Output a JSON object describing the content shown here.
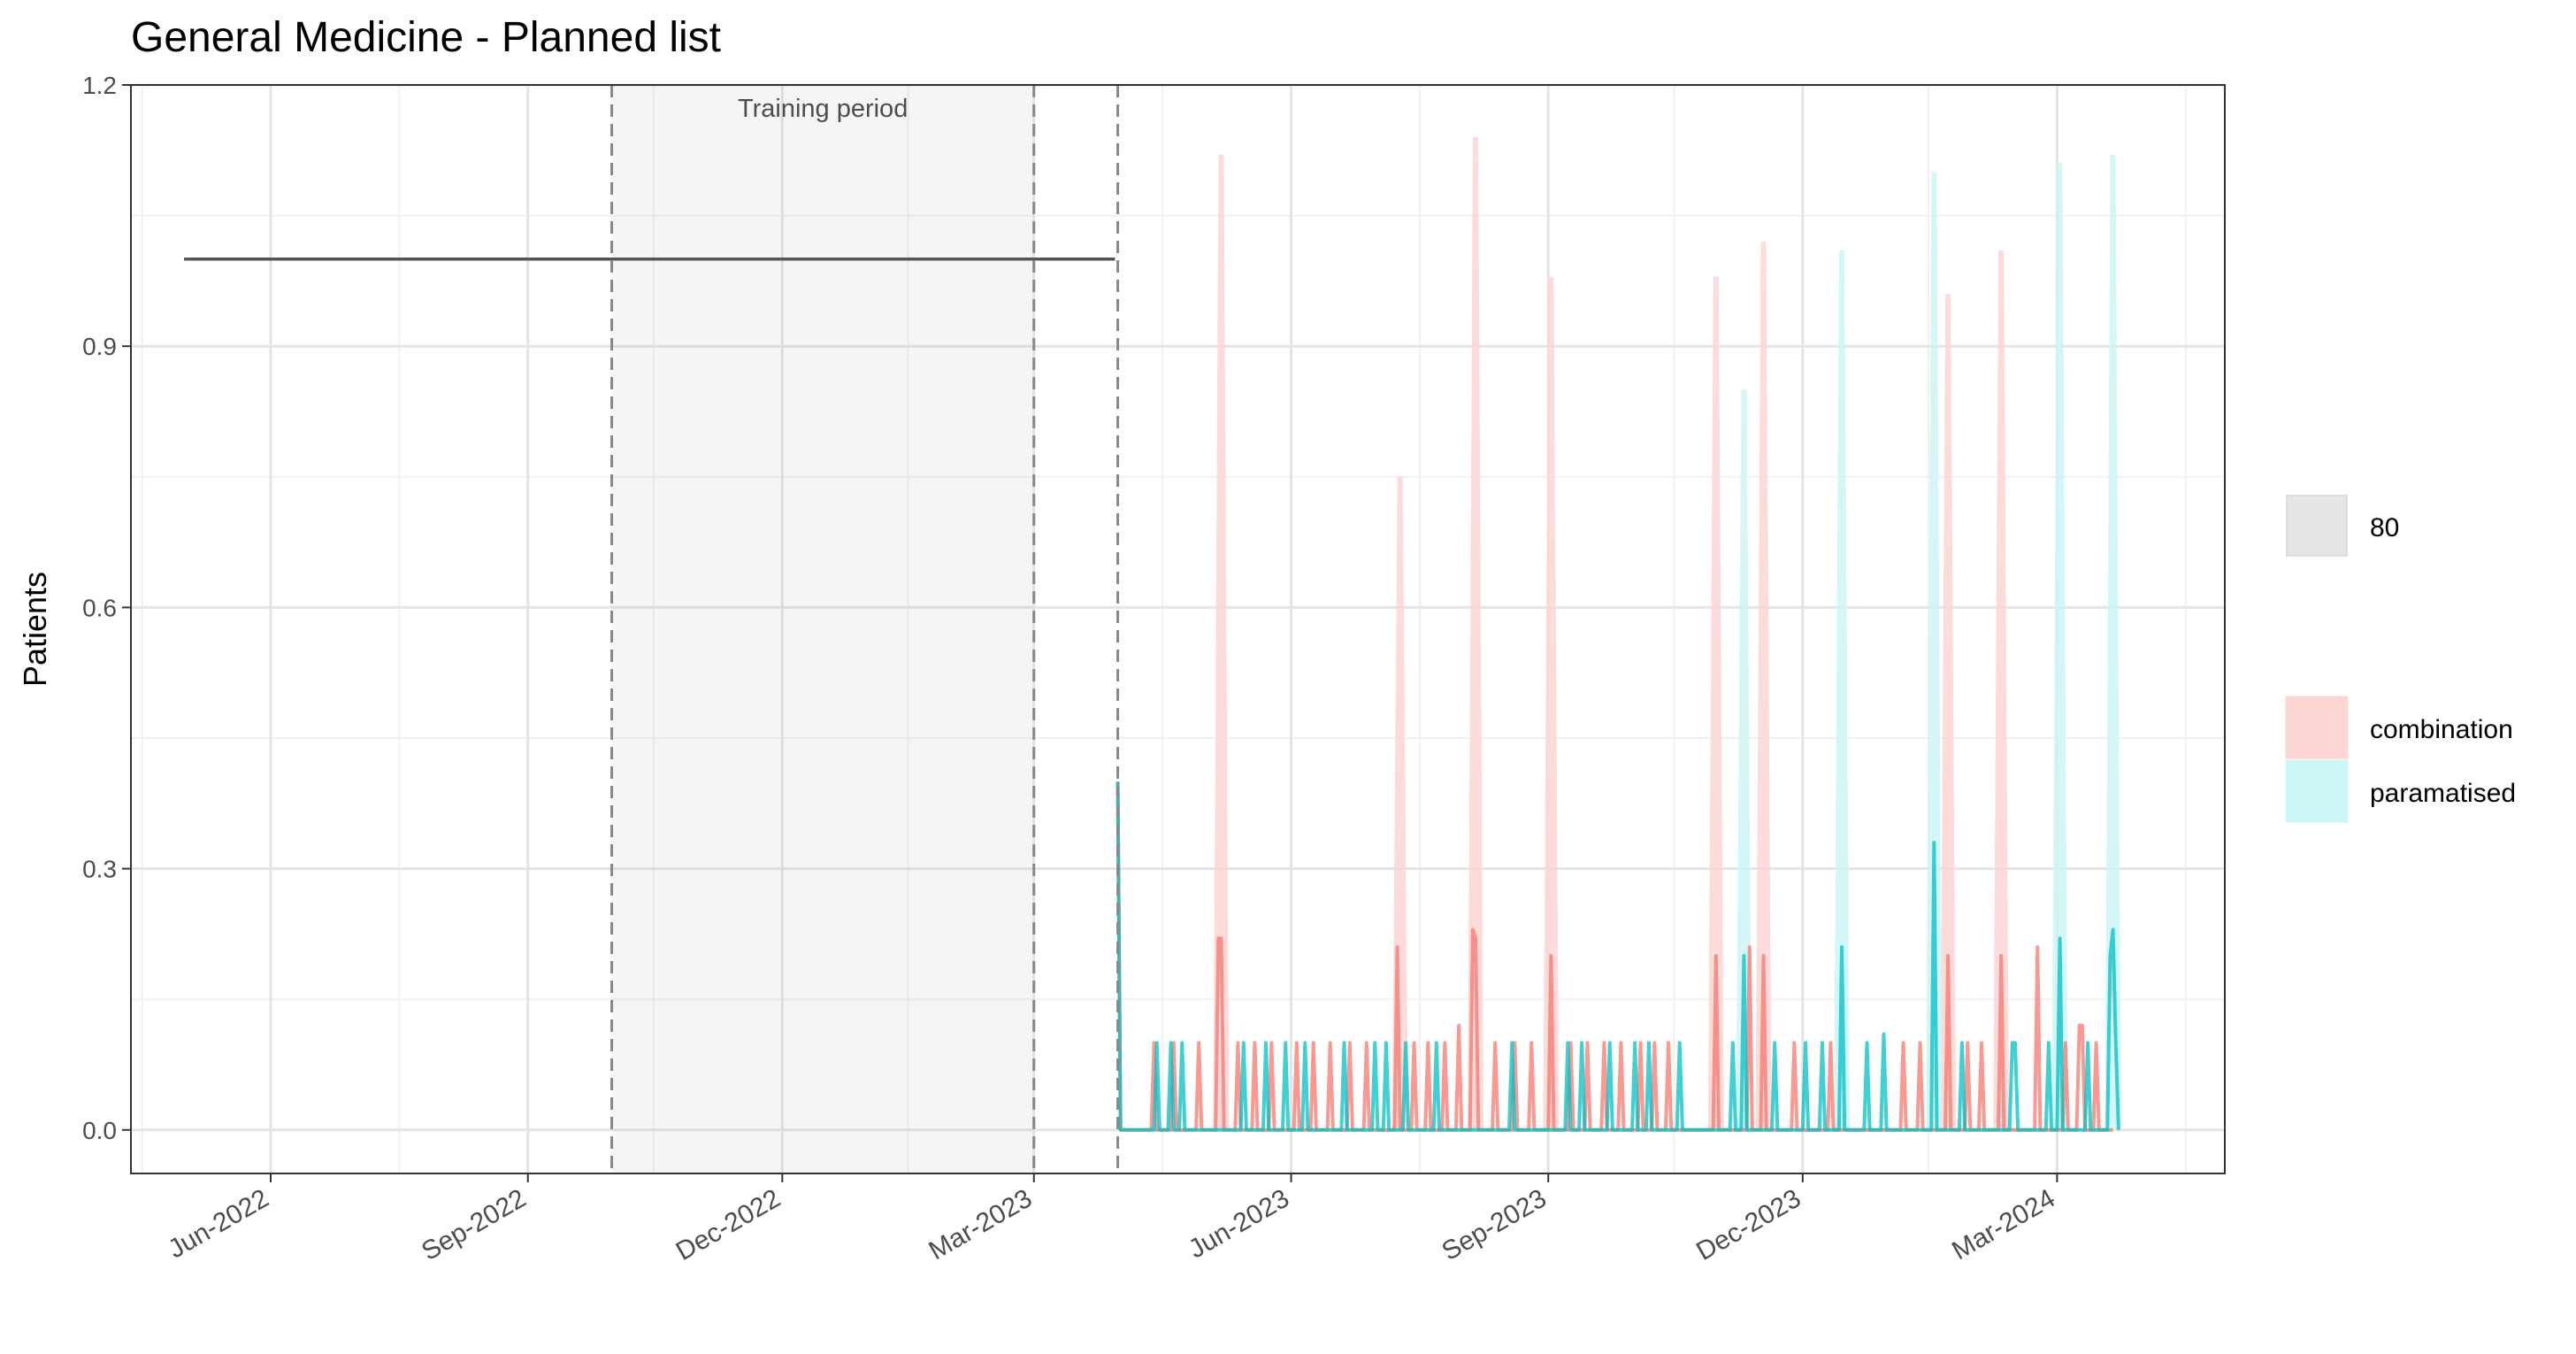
{
  "chart_data": {
    "type": "line",
    "title": "General Medicine - Planned list",
    "ylabel": "Patients",
    "xlabel": "",
    "ylim": [
      -0.05,
      1.2
    ],
    "xlim": [
      "2022-04-12",
      "2024-04-30"
    ],
    "grid": true,
    "y_ticks": [
      {
        "value": 0.0,
        "label": "0.0"
      },
      {
        "value": 0.3,
        "label": "0.3"
      },
      {
        "value": 0.6,
        "label": "0.6"
      },
      {
        "value": 0.9,
        "label": "0.9"
      },
      {
        "value": 1.2,
        "label": "1.2"
      }
    ],
    "x_ticks": [
      {
        "date": "2022-06-01",
        "label": "Jun-2022"
      },
      {
        "date": "2022-09-01",
        "label": "Sep-2022"
      },
      {
        "date": "2022-12-01",
        "label": "Dec-2022"
      },
      {
        "date": "2023-03-01",
        "label": "Mar-2023"
      },
      {
        "date": "2023-06-01",
        "label": "Jun-2023"
      },
      {
        "date": "2023-09-01",
        "label": "Sep-2023"
      },
      {
        "date": "2023-12-01",
        "label": "Dec-2023"
      },
      {
        "date": "2024-03-01",
        "label": "Mar-2024"
      }
    ],
    "training_period": {
      "label": "Training period",
      "start": "2022-10-01",
      "end": "2023-03-01"
    },
    "vlines": [
      "2022-10-01",
      "2023-03-01",
      "2023-03-31"
    ],
    "historical": {
      "color": "#555555",
      "start": "2022-05-01",
      "end": "2023-03-30",
      "value": 1.0
    },
    "legend": {
      "placement": "right",
      "interval": {
        "label": "80",
        "color": "#e5e5e5"
      },
      "entries": [
        {
          "label": "combination",
          "color": "#f8766d",
          "fill": "#fcd6d3"
        },
        {
          "label": "paramatised",
          "color": "#00bfc4",
          "fill": "#ccf5f6"
        }
      ]
    },
    "series": [
      {
        "name": "combination",
        "color": "#f8766d",
        "points": [
          [
            "2023-03-31",
            0.4
          ],
          [
            "2023-04-01",
            0
          ],
          [
            "2023-04-12",
            0
          ],
          [
            "2023-04-13",
            0.1
          ],
          [
            "2023-04-14",
            0
          ],
          [
            "2023-04-19",
            0
          ],
          [
            "2023-04-20",
            0.1
          ],
          [
            "2023-04-21",
            0
          ],
          [
            "2023-04-28",
            0
          ],
          [
            "2023-04-29",
            0.1
          ],
          [
            "2023-04-30",
            0
          ],
          [
            "2023-05-05",
            0
          ],
          [
            "2023-05-06",
            0.22
          ],
          [
            "2023-05-07",
            0.22
          ],
          [
            "2023-05-08",
            0
          ],
          [
            "2023-05-12",
            0
          ],
          [
            "2023-05-13",
            0.1
          ],
          [
            "2023-05-14",
            0
          ],
          [
            "2023-05-18",
            0
          ],
          [
            "2023-05-19",
            0.1
          ],
          [
            "2023-05-20",
            0
          ],
          [
            "2023-05-24",
            0
          ],
          [
            "2023-05-25",
            0.1
          ],
          [
            "2023-05-26",
            0
          ],
          [
            "2023-06-02",
            0
          ],
          [
            "2023-06-03",
            0.1
          ],
          [
            "2023-06-04",
            0
          ],
          [
            "2023-06-08",
            0
          ],
          [
            "2023-06-09",
            0.1
          ],
          [
            "2023-06-10",
            0
          ],
          [
            "2023-06-14",
            0
          ],
          [
            "2023-06-15",
            0.1
          ],
          [
            "2023-06-16",
            0
          ],
          [
            "2023-06-21",
            0
          ],
          [
            "2023-06-22",
            0.1
          ],
          [
            "2023-06-23",
            0
          ],
          [
            "2023-06-27",
            0
          ],
          [
            "2023-06-28",
            0.1
          ],
          [
            "2023-06-29",
            0
          ],
          [
            "2023-07-08",
            0
          ],
          [
            "2023-07-09",
            0.21
          ],
          [
            "2023-07-10",
            0
          ],
          [
            "2023-07-14",
            0
          ],
          [
            "2023-07-15",
            0.1
          ],
          [
            "2023-07-16",
            0
          ],
          [
            "2023-07-19",
            0
          ],
          [
            "2023-07-20",
            0.1
          ],
          [
            "2023-07-21",
            0
          ],
          [
            "2023-07-25",
            0
          ],
          [
            "2023-07-26",
            0.1
          ],
          [
            "2023-07-27",
            0
          ],
          [
            "2023-07-30",
            0
          ],
          [
            "2023-07-31",
            0.12
          ],
          [
            "2023-08-01",
            0
          ],
          [
            "2023-08-04",
            0
          ],
          [
            "2023-08-05",
            0.23
          ],
          [
            "2023-08-06",
            0.22
          ],
          [
            "2023-08-07",
            0
          ],
          [
            "2023-08-12",
            0
          ],
          [
            "2023-08-13",
            0.1
          ],
          [
            "2023-08-14",
            0
          ],
          [
            "2023-08-19",
            0
          ],
          [
            "2023-08-20",
            0.1
          ],
          [
            "2023-08-21",
            0
          ],
          [
            "2023-08-25",
            0
          ],
          [
            "2023-08-26",
            0.1
          ],
          [
            "2023-08-27",
            0
          ],
          [
            "2023-09-01",
            0
          ],
          [
            "2023-09-02",
            0.2
          ],
          [
            "2023-09-03",
            0
          ],
          [
            "2023-09-08",
            0
          ],
          [
            "2023-09-09",
            0.1
          ],
          [
            "2023-09-10",
            0
          ],
          [
            "2023-09-14",
            0
          ],
          [
            "2023-09-15",
            0.1
          ],
          [
            "2023-09-16",
            0
          ],
          [
            "2023-09-20",
            0
          ],
          [
            "2023-09-21",
            0.1
          ],
          [
            "2023-09-22",
            0
          ],
          [
            "2023-09-26",
            0
          ],
          [
            "2023-09-27",
            0.1
          ],
          [
            "2023-09-28",
            0
          ],
          [
            "2023-10-03",
            0
          ],
          [
            "2023-10-04",
            0.1
          ],
          [
            "2023-10-05",
            0
          ],
          [
            "2023-10-08",
            0
          ],
          [
            "2023-10-09",
            0.1
          ],
          [
            "2023-10-10",
            0
          ],
          [
            "2023-10-13",
            0
          ],
          [
            "2023-10-14",
            0.1
          ],
          [
            "2023-10-15",
            0
          ],
          [
            "2023-10-30",
            0
          ],
          [
            "2023-10-31",
            0.2
          ],
          [
            "2023-11-01",
            0
          ],
          [
            "2023-11-11",
            0
          ],
          [
            "2023-11-12",
            0.21
          ],
          [
            "2023-11-13",
            0
          ],
          [
            "2023-11-16",
            0
          ],
          [
            "2023-11-17",
            0.2
          ],
          [
            "2023-11-18",
            0
          ],
          [
            "2023-11-27",
            0
          ],
          [
            "2023-11-28",
            0.1
          ],
          [
            "2023-11-29",
            0
          ],
          [
            "2023-12-10",
            0
          ],
          [
            "2023-12-11",
            0.1
          ],
          [
            "2023-12-12",
            0
          ],
          [
            "2024-01-05",
            0
          ],
          [
            "2024-01-06",
            0.1
          ],
          [
            "2024-01-07",
            0
          ],
          [
            "2024-01-11",
            0
          ],
          [
            "2024-01-12",
            0.1
          ],
          [
            "2024-01-13",
            0
          ],
          [
            "2024-01-21",
            0
          ],
          [
            "2024-01-22",
            0.2
          ],
          [
            "2024-01-23",
            0
          ],
          [
            "2024-01-28",
            0
          ],
          [
            "2024-01-29",
            0.1
          ],
          [
            "2024-01-30",
            0
          ],
          [
            "2024-02-02",
            0
          ],
          [
            "2024-02-03",
            0.1
          ],
          [
            "2024-02-04",
            0
          ],
          [
            "2024-02-09",
            0
          ],
          [
            "2024-02-10",
            0.2
          ],
          [
            "2024-02-11",
            0
          ],
          [
            "2024-02-22",
            0
          ],
          [
            "2024-02-23",
            0.21
          ],
          [
            "2024-02-24",
            0
          ],
          [
            "2024-03-03",
            0
          ],
          [
            "2024-03-04",
            0.1
          ],
          [
            "2024-03-05",
            0
          ],
          [
            "2024-03-08",
            0
          ],
          [
            "2024-03-09",
            0.12
          ],
          [
            "2024-03-10",
            0.12
          ],
          [
            "2024-03-11",
            0
          ],
          [
            "2024-03-14",
            0
          ],
          [
            "2024-03-15",
            0.1
          ],
          [
            "2024-03-16",
            0
          ],
          [
            "2024-03-21",
            0
          ]
        ],
        "upper": [
          [
            "2023-05-07",
            1.12
          ],
          [
            "2023-07-10",
            0.75
          ],
          [
            "2023-08-06",
            1.14
          ],
          [
            "2023-09-02",
            0.98
          ],
          [
            "2023-10-31",
            0.98
          ],
          [
            "2023-11-17",
            1.02
          ],
          [
            "2024-01-22",
            0.96
          ],
          [
            "2024-02-10",
            1.01
          ]
        ]
      },
      {
        "name": "paramatised",
        "color": "#00bfc4",
        "points": [
          [
            "2023-03-31",
            0.4
          ],
          [
            "2023-04-01",
            0
          ],
          [
            "2023-04-13",
            0
          ],
          [
            "2023-04-14",
            0.1
          ],
          [
            "2023-04-15",
            0
          ],
          [
            "2023-04-18",
            0
          ],
          [
            "2023-04-19",
            0.1
          ],
          [
            "2023-04-20",
            0
          ],
          [
            "2023-04-22",
            0
          ],
          [
            "2023-04-23",
            0.1
          ],
          [
            "2023-04-24",
            0
          ],
          [
            "2023-05-14",
            0
          ],
          [
            "2023-05-15",
            0.1
          ],
          [
            "2023-05-16",
            0
          ],
          [
            "2023-05-22",
            0
          ],
          [
            "2023-05-23",
            0.1
          ],
          [
            "2023-05-24",
            0
          ],
          [
            "2023-05-29",
            0
          ],
          [
            "2023-05-30",
            0.1
          ],
          [
            "2023-05-31",
            0
          ],
          [
            "2023-06-05",
            0
          ],
          [
            "2023-06-06",
            0.1
          ],
          [
            "2023-06-07",
            0
          ],
          [
            "2023-06-19",
            0
          ],
          [
            "2023-06-20",
            0.1
          ],
          [
            "2023-06-21",
            0
          ],
          [
            "2023-06-30",
            0
          ],
          [
            "2023-07-01",
            0.1
          ],
          [
            "2023-07-02",
            0
          ],
          [
            "2023-07-04",
            0
          ],
          [
            "2023-07-05",
            0.1
          ],
          [
            "2023-07-06",
            0
          ],
          [
            "2023-07-11",
            0
          ],
          [
            "2023-07-12",
            0.1
          ],
          [
            "2023-07-13",
            0
          ],
          [
            "2023-07-22",
            0
          ],
          [
            "2023-07-23",
            0.1
          ],
          [
            "2023-07-24",
            0
          ],
          [
            "2023-08-18",
            0
          ],
          [
            "2023-08-19",
            0.1
          ],
          [
            "2023-08-20",
            0
          ],
          [
            "2023-09-07",
            0
          ],
          [
            "2023-09-08",
            0.1
          ],
          [
            "2023-09-09",
            0
          ],
          [
            "2023-09-12",
            0
          ],
          [
            "2023-09-13",
            0.1
          ],
          [
            "2023-09-14",
            0
          ],
          [
            "2023-09-22",
            0
          ],
          [
            "2023-09-23",
            0.1
          ],
          [
            "2023-09-24",
            0
          ],
          [
            "2023-10-01",
            0
          ],
          [
            "2023-10-02",
            0.1
          ],
          [
            "2023-10-03",
            0
          ],
          [
            "2023-10-06",
            0
          ],
          [
            "2023-10-07",
            0.1
          ],
          [
            "2023-10-08",
            0
          ],
          [
            "2023-10-17",
            0
          ],
          [
            "2023-10-18",
            0.1
          ],
          [
            "2023-10-19",
            0
          ],
          [
            "2023-11-05",
            0
          ],
          [
            "2023-11-06",
            0.1
          ],
          [
            "2023-11-07",
            0
          ],
          [
            "2023-11-09",
            0
          ],
          [
            "2023-11-10",
            0.2
          ],
          [
            "2023-11-11",
            0
          ],
          [
            "2023-11-20",
            0
          ],
          [
            "2023-11-21",
            0.1
          ],
          [
            "2023-11-22",
            0
          ],
          [
            "2023-12-01",
            0
          ],
          [
            "2023-12-02",
            0.1
          ],
          [
            "2023-12-03",
            0
          ],
          [
            "2023-12-07",
            0
          ],
          [
            "2023-12-08",
            0.1
          ],
          [
            "2023-12-09",
            0
          ],
          [
            "2023-12-14",
            0
          ],
          [
            "2023-12-15",
            0.21
          ],
          [
            "2023-12-16",
            0
          ],
          [
            "2023-12-23",
            0
          ],
          [
            "2023-12-24",
            0.1
          ],
          [
            "2023-12-25",
            0
          ],
          [
            "2023-12-29",
            0
          ],
          [
            "2023-12-30",
            0.11
          ],
          [
            "2023-12-31",
            0
          ],
          [
            "2024-01-16",
            0
          ],
          [
            "2024-01-17",
            0.33
          ],
          [
            "2024-01-18",
            0
          ],
          [
            "2024-01-26",
            0
          ],
          [
            "2024-01-27",
            0.1
          ],
          [
            "2024-01-28",
            0
          ],
          [
            "2024-02-13",
            0
          ],
          [
            "2024-02-14",
            0.1
          ],
          [
            "2024-02-15",
            0.1
          ],
          [
            "2024-02-16",
            0
          ],
          [
            "2024-02-26",
            0
          ],
          [
            "2024-02-27",
            0.1
          ],
          [
            "2024-02-28",
            0
          ],
          [
            "2024-03-01",
            0
          ],
          [
            "2024-03-02",
            0.22
          ],
          [
            "2024-03-03",
            0
          ],
          [
            "2024-03-11",
            0
          ],
          [
            "2024-03-12",
            0.1
          ],
          [
            "2024-03-13",
            0
          ],
          [
            "2024-03-19",
            0
          ],
          [
            "2024-03-20",
            0.2
          ],
          [
            "2024-03-21",
            0.23
          ],
          [
            "2024-03-22",
            0.1
          ],
          [
            "2024-03-23",
            0
          ]
        ],
        "upper": [
          [
            "2023-11-10",
            0.85
          ],
          [
            "2023-12-15",
            1.01
          ],
          [
            "2024-01-17",
            1.1
          ],
          [
            "2024-03-02",
            1.11
          ],
          [
            "2024-03-21",
            1.12
          ]
        ]
      }
    ]
  }
}
